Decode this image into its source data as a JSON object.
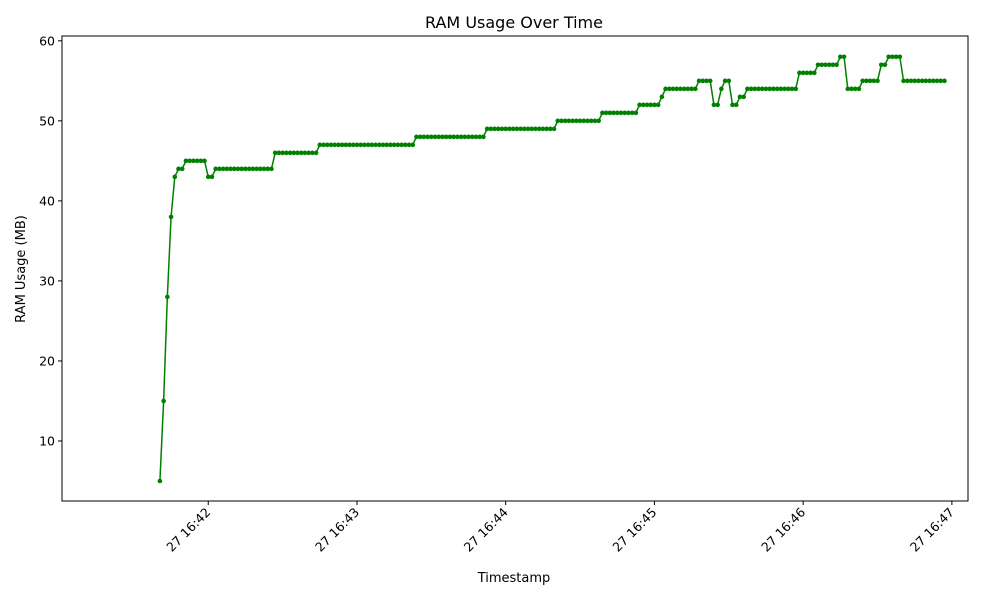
{
  "chart_data": {
    "type": "line",
    "title": "RAM Usage Over Time",
    "xlabel": "Timestamp",
    "ylabel": "RAM Usage (MB)",
    "x_ticks": [
      "27 16:42",
      "27 16:43",
      "27 16:44",
      "27 16:45",
      "27 16:46",
      "27 16:47"
    ],
    "x_tick_seconds": [
      120,
      180,
      240,
      300,
      360,
      420
    ],
    "x_range_seconds": [
      61.0,
      426.5
    ],
    "y_ticks": [
      10,
      20,
      30,
      40,
      50,
      60
    ],
    "ylim": [
      2.5,
      60.6
    ],
    "grid": false,
    "legend": "none",
    "colors": {
      "line": "#008000",
      "marker": "#008000"
    },
    "series": [
      {
        "start_time": "16:41:40.5",
        "interval_seconds": 1.5,
        "values": [
          5,
          15,
          28,
          38,
          43,
          44,
          44,
          45,
          45,
          45,
          45,
          45,
          45,
          43,
          43,
          44,
          44,
          44,
          44,
          44,
          44,
          44,
          44,
          44,
          44,
          44,
          44,
          44,
          44,
          44,
          44,
          46,
          46,
          46,
          46,
          46,
          46,
          46,
          46,
          46,
          46,
          46,
          46,
          47,
          47,
          47,
          47,
          47,
          47,
          47,
          47,
          47,
          47,
          47,
          47,
          47,
          47,
          47,
          47,
          47,
          47,
          47,
          47,
          47,
          47,
          47,
          47,
          47,
          47,
          48,
          48,
          48,
          48,
          48,
          48,
          48,
          48,
          48,
          48,
          48,
          48,
          48,
          48,
          48,
          48,
          48,
          48,
          48,
          49,
          49,
          49,
          49,
          49,
          49,
          49,
          49,
          49,
          49,
          49,
          49,
          49,
          49,
          49,
          49,
          49,
          49,
          49,
          50,
          50,
          50,
          50,
          50,
          50,
          50,
          50,
          50,
          50,
          50,
          50,
          51,
          51,
          51,
          51,
          51,
          51,
          51,
          51,
          51,
          51,
          52,
          52,
          52,
          52,
          52,
          52,
          53,
          54,
          54,
          54,
          54,
          54,
          54,
          54,
          54,
          54,
          55,
          55,
          55,
          55,
          52,
          52,
          54,
          55,
          55,
          52,
          52,
          53,
          53,
          54,
          54,
          54,
          54,
          54,
          54,
          54,
          54,
          54,
          54,
          54,
          54,
          54,
          54,
          56,
          56,
          56,
          56,
          56,
          57,
          57,
          57,
          57,
          57,
          57,
          58,
          58,
          54,
          54,
          54,
          54,
          55,
          55,
          55,
          55,
          55,
          57,
          57,
          58,
          58,
          58,
          58,
          55,
          55,
          55,
          55,
          55,
          55,
          55,
          55,
          55,
          55,
          55,
          55
        ]
      }
    ]
  }
}
